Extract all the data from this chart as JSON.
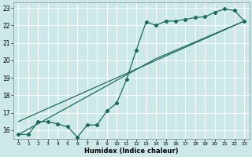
{
  "xlabel": "Humidex (Indice chaleur)",
  "bg_color": "#cce8e8",
  "grid_color": "#ffffff",
  "line_color": "#1a6b5a",
  "xlim": [
    -0.5,
    23.5
  ],
  "ylim": [
    15.5,
    23.3
  ],
  "yticks": [
    16,
    17,
    18,
    19,
    20,
    21,
    22,
    23
  ],
  "xticks": [
    0,
    1,
    2,
    3,
    4,
    5,
    6,
    7,
    8,
    9,
    10,
    11,
    12,
    13,
    14,
    15,
    16,
    17,
    18,
    19,
    20,
    21,
    22,
    23
  ],
  "line1_x": [
    0,
    1,
    2,
    3,
    4,
    5,
    6,
    7,
    8,
    9,
    10,
    11,
    12,
    13,
    14,
    15,
    16,
    17,
    18,
    19,
    20,
    21,
    22,
    23
  ],
  "line1_y": [
    15.75,
    15.75,
    16.5,
    16.5,
    16.35,
    16.2,
    15.6,
    16.3,
    16.3,
    17.1,
    17.55,
    18.9,
    20.6,
    22.2,
    22.0,
    22.25,
    22.25,
    22.35,
    22.45,
    22.5,
    22.75,
    22.95,
    22.85,
    22.25
  ],
  "line2_x": [
    0,
    14,
    23
  ],
  "line2_y": [
    15.75,
    20.1,
    22.25
  ],
  "line3_x": [
    0,
    23
  ],
  "line3_y": [
    16.5,
    22.25
  ]
}
